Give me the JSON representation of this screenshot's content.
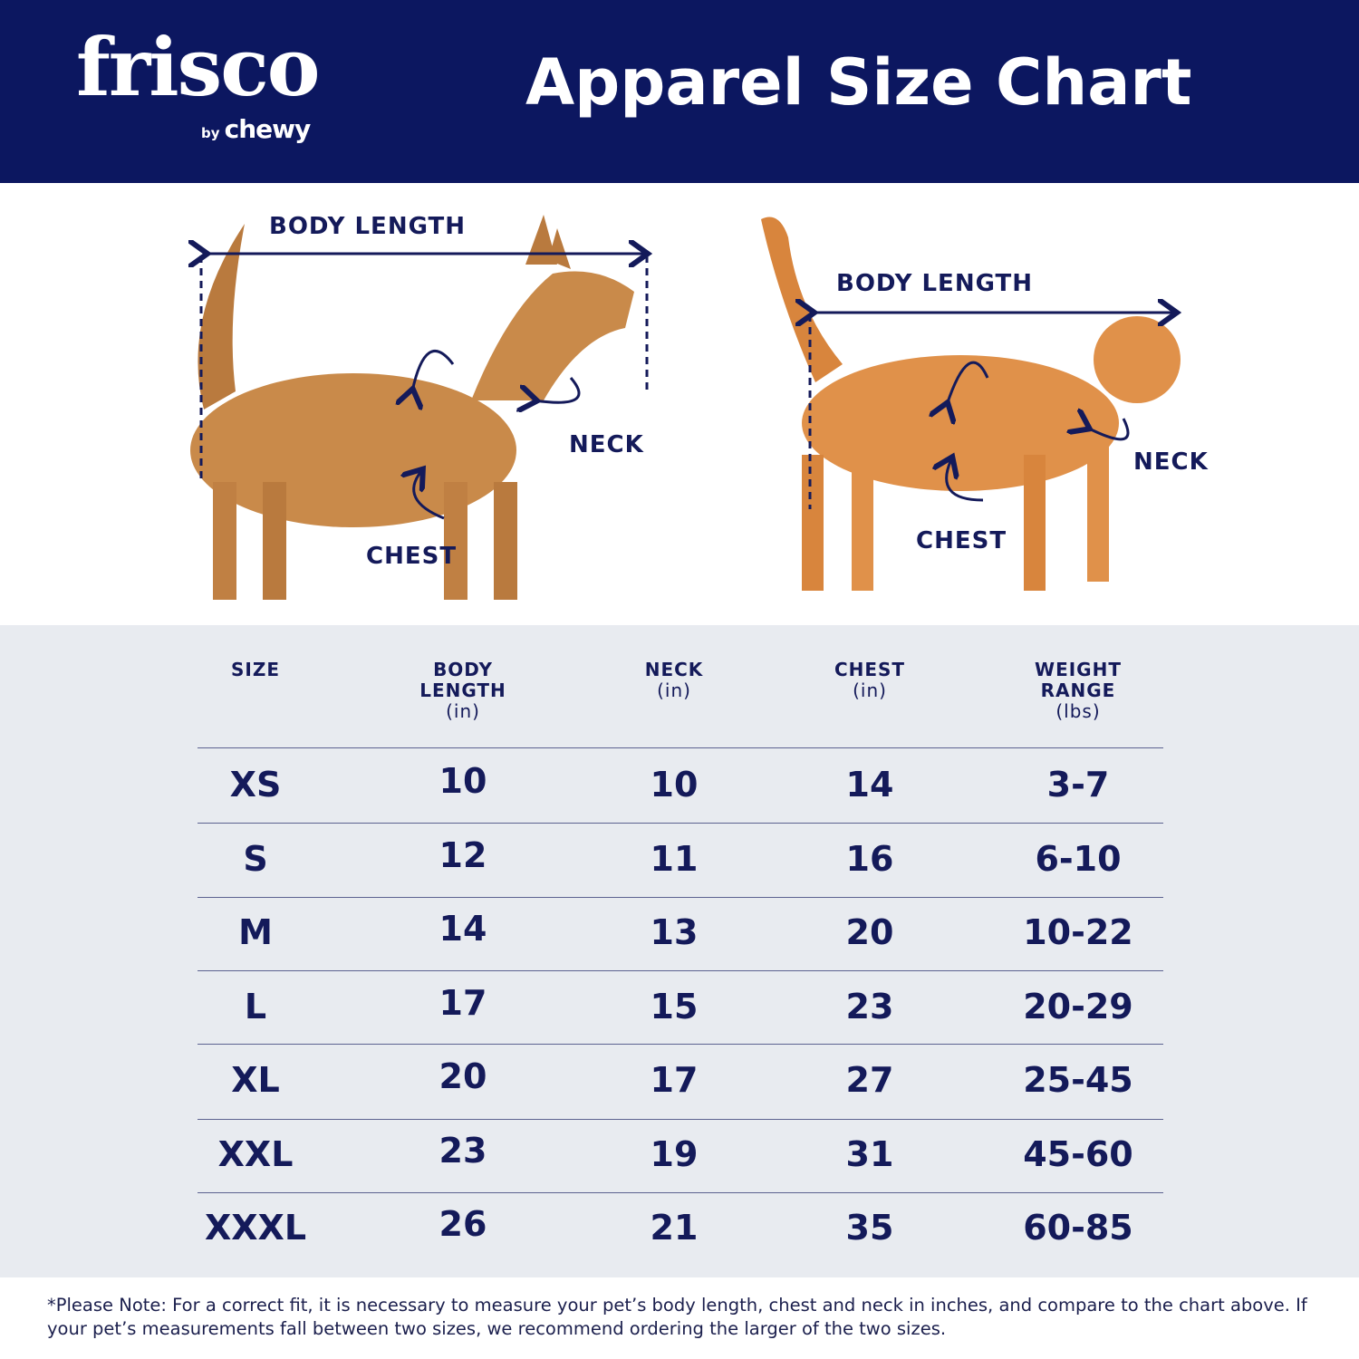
{
  "brand": {
    "logo_main": "frisco",
    "logo_by": "by",
    "logo_sub": "chewy"
  },
  "title": "Apparel Size Chart",
  "colors": {
    "header_bg": "#0c1760",
    "text": "#141a5a",
    "table_bg": "#e8ebf0"
  },
  "diagram": {
    "dog": {
      "body_length": "BODY LENGTH",
      "neck": "NECK",
      "chest": "CHEST"
    },
    "cat": {
      "body_length": "BODY LENGTH",
      "neck": "NECK",
      "chest": "CHEST"
    }
  },
  "table": {
    "headers": [
      {
        "label": "SIZE",
        "unit": ""
      },
      {
        "label": "BODY LENGTH",
        "unit": "(in)"
      },
      {
        "label": "NECK",
        "unit": "(in)"
      },
      {
        "label": "CHEST",
        "unit": "(in)"
      },
      {
        "label": "WEIGHT RANGE",
        "unit": "(lbs)"
      }
    ],
    "rows": [
      [
        "XS",
        "10",
        "10",
        "14",
        "3-7"
      ],
      [
        "S",
        "12",
        "11",
        "16",
        "6-10"
      ],
      [
        "M",
        "14",
        "13",
        "20",
        "10-22"
      ],
      [
        "L",
        "17",
        "15",
        "23",
        "20-29"
      ],
      [
        "XL",
        "20",
        "17",
        "27",
        "25-45"
      ],
      [
        "XXL",
        "23",
        "19",
        "31",
        "45-60"
      ],
      [
        "XXXL",
        "26",
        "21",
        "35",
        "60-85"
      ]
    ]
  },
  "note": "*Please Note: For a correct fit, it is necessary to measure your pet’s body length, chest and neck in inches, and compare to the chart above. If your pet’s measurements fall between two sizes, we recommend ordering the larger of the two sizes."
}
